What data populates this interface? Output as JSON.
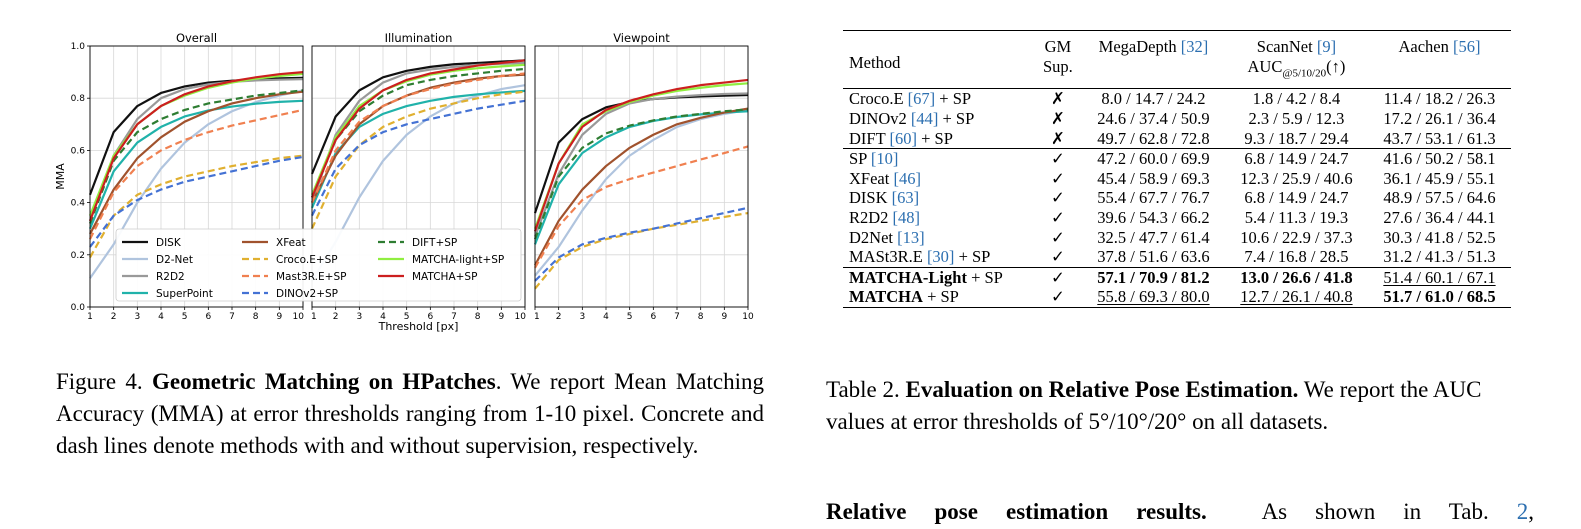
{
  "figure": {
    "panels": [
      "Overall",
      "Illumination",
      "Viewpoint"
    ],
    "y_axis_label": "MMA",
    "x_axis_label": "Threshold [px]",
    "y_ticks": [
      "0.0",
      "0.2",
      "0.4",
      "0.6",
      "0.8",
      "1.0"
    ],
    "x_ticks": [
      "1",
      "2",
      "3",
      "4",
      "5",
      "6",
      "7",
      "8",
      "9",
      "10"
    ]
  },
  "chart_data": [
    {
      "type": "line",
      "title": "Overall",
      "xlabel": "",
      "ylabel": "MMA",
      "x": [
        1,
        2,
        3,
        4,
        5,
        6,
        7,
        8,
        9,
        10
      ],
      "ylim": [
        0.0,
        1.0
      ],
      "xlim": [
        1,
        10
      ],
      "grid": true,
      "legend_position": "lower-center",
      "series": [
        {
          "name": "DISK",
          "color": "#111111",
          "dash": "solid",
          "values": [
            0.43,
            0.67,
            0.77,
            0.82,
            0.845,
            0.86,
            0.867,
            0.872,
            0.876,
            0.878
          ]
        },
        {
          "name": "D2-Net",
          "color": "#b0c4de",
          "dash": "solid",
          "values": [
            0.11,
            0.24,
            0.4,
            0.53,
            0.63,
            0.7,
            0.75,
            0.785,
            0.81,
            0.83
          ]
        },
        {
          "name": "R2D2",
          "color": "#999999",
          "dash": "solid",
          "values": [
            0.33,
            0.58,
            0.72,
            0.8,
            0.835,
            0.853,
            0.863,
            0.868,
            0.871,
            0.873
          ]
        },
        {
          "name": "SuperPoint",
          "color": "#20b2aa",
          "dash": "solid",
          "values": [
            0.3,
            0.52,
            0.63,
            0.69,
            0.73,
            0.753,
            0.768,
            0.779,
            0.786,
            0.79
          ]
        },
        {
          "name": "XFeat",
          "color": "#a0522d",
          "dash": "solid",
          "values": [
            0.28,
            0.45,
            0.57,
            0.65,
            0.71,
            0.75,
            0.78,
            0.8,
            0.815,
            0.825
          ]
        },
        {
          "name": "Croco.E+SP",
          "color": "#e0b030",
          "dash": "dashed",
          "values": [
            0.19,
            0.35,
            0.43,
            0.47,
            0.5,
            0.52,
            0.54,
            0.555,
            0.57,
            0.58
          ]
        },
        {
          "name": "Mast3R.E+SP",
          "color": "#f08050",
          "dash": "dashed",
          "values": [
            0.26,
            0.44,
            0.54,
            0.6,
            0.64,
            0.67,
            0.695,
            0.715,
            0.735,
            0.755
          ]
        },
        {
          "name": "DINOv2+SP",
          "color": "#4472d4",
          "dash": "dashed",
          "values": [
            0.23,
            0.35,
            0.41,
            0.45,
            0.48,
            0.5,
            0.52,
            0.54,
            0.56,
            0.575
          ]
        },
        {
          "name": "DIFT+SP",
          "color": "#2e7d32",
          "dash": "dashed",
          "values": [
            0.32,
            0.56,
            0.67,
            0.72,
            0.755,
            0.78,
            0.795,
            0.81,
            0.82,
            0.83
          ]
        },
        {
          "name": "MATCHA-light+SP",
          "color": "#90ee40",
          "dash": "solid",
          "values": [
            0.35,
            0.58,
            0.7,
            0.77,
            0.81,
            0.84,
            0.86,
            0.875,
            0.885,
            0.893
          ]
        },
        {
          "name": "MATCHA+SP",
          "color": "#cc1f1f",
          "dash": "solid",
          "values": [
            0.33,
            0.57,
            0.7,
            0.77,
            0.815,
            0.845,
            0.865,
            0.88,
            0.892,
            0.9
          ]
        }
      ]
    },
    {
      "type": "line",
      "title": "Illumination",
      "xlabel": "Threshold [px]",
      "ylabel": "",
      "x": [
        1,
        2,
        3,
        4,
        5,
        6,
        7,
        8,
        9,
        10
      ],
      "ylim": [
        0.0,
        1.0
      ],
      "xlim": [
        1,
        10
      ],
      "grid": true,
      "series": [
        {
          "name": "DISK",
          "color": "#111111",
          "dash": "solid",
          "values": [
            0.51,
            0.73,
            0.83,
            0.88,
            0.905,
            0.92,
            0.93,
            0.935,
            0.94,
            0.945
          ]
        },
        {
          "name": "D2-Net",
          "color": "#b0c4de",
          "dash": "solid",
          "values": [
            0.1,
            0.25,
            0.42,
            0.56,
            0.66,
            0.73,
            0.78,
            0.81,
            0.835,
            0.85
          ]
        },
        {
          "name": "R2D2",
          "color": "#999999",
          "dash": "solid",
          "values": [
            0.4,
            0.66,
            0.79,
            0.86,
            0.895,
            0.91,
            0.92,
            0.928,
            0.932,
            0.935
          ]
        },
        {
          "name": "SuperPoint",
          "color": "#20b2aa",
          "dash": "solid",
          "values": [
            0.38,
            0.59,
            0.69,
            0.74,
            0.77,
            0.79,
            0.805,
            0.815,
            0.822,
            0.828
          ]
        },
        {
          "name": "XFeat",
          "color": "#a0522d",
          "dash": "solid",
          "values": [
            0.4,
            0.58,
            0.7,
            0.77,
            0.81,
            0.84,
            0.86,
            0.875,
            0.885,
            0.89
          ]
        },
        {
          "name": "Croco.E+SP",
          "color": "#e0b030",
          "dash": "dashed",
          "values": [
            0.3,
            0.5,
            0.62,
            0.69,
            0.73,
            0.76,
            0.78,
            0.8,
            0.815,
            0.825
          ]
        },
        {
          "name": "Mast3R.E+SP",
          "color": "#f08050",
          "dash": "dashed",
          "values": [
            0.4,
            0.6,
            0.71,
            0.77,
            0.81,
            0.835,
            0.855,
            0.87,
            0.885,
            0.895
          ]
        },
        {
          "name": "DINOv2+SP",
          "color": "#4472d4",
          "dash": "dashed",
          "values": [
            0.35,
            0.53,
            0.62,
            0.67,
            0.7,
            0.72,
            0.74,
            0.76,
            0.775,
            0.79
          ]
        },
        {
          "name": "DIFT+SP",
          "color": "#2e7d32",
          "dash": "dashed",
          "values": [
            0.42,
            0.64,
            0.75,
            0.81,
            0.85,
            0.87,
            0.885,
            0.895,
            0.905,
            0.912
          ]
        },
        {
          "name": "MATCHA-light+SP",
          "color": "#90ee40",
          "dash": "solid",
          "values": [
            0.43,
            0.65,
            0.77,
            0.83,
            0.865,
            0.89,
            0.905,
            0.915,
            0.922,
            0.928
          ]
        },
        {
          "name": "MATCHA+SP",
          "color": "#cc1f1f",
          "dash": "solid",
          "values": [
            0.42,
            0.64,
            0.76,
            0.83,
            0.87,
            0.895,
            0.91,
            0.925,
            0.935,
            0.945
          ]
        }
      ]
    },
    {
      "type": "line",
      "title": "Viewpoint",
      "xlabel": "",
      "ylabel": "",
      "x": [
        1,
        2,
        3,
        4,
        5,
        6,
        7,
        8,
        9,
        10
      ],
      "ylim": [
        0.0,
        1.0
      ],
      "xlim": [
        1,
        10
      ],
      "grid": true,
      "series": [
        {
          "name": "DISK",
          "color": "#111111",
          "dash": "solid",
          "values": [
            0.36,
            0.63,
            0.72,
            0.765,
            0.785,
            0.797,
            0.803,
            0.807,
            0.81,
            0.812
          ]
        },
        {
          "name": "D2-Net",
          "color": "#b0c4de",
          "dash": "solid",
          "values": [
            0.12,
            0.23,
            0.37,
            0.49,
            0.58,
            0.64,
            0.69,
            0.72,
            0.74,
            0.755
          ]
        },
        {
          "name": "R2D2",
          "color": "#999999",
          "dash": "solid",
          "values": [
            0.27,
            0.51,
            0.66,
            0.74,
            0.78,
            0.797,
            0.806,
            0.812,
            0.816,
            0.818
          ]
        },
        {
          "name": "SuperPoint",
          "color": "#20b2aa",
          "dash": "solid",
          "values": [
            0.24,
            0.47,
            0.59,
            0.65,
            0.69,
            0.713,
            0.728,
            0.738,
            0.745,
            0.75
          ]
        },
        {
          "name": "XFeat",
          "color": "#a0522d",
          "dash": "solid",
          "values": [
            0.16,
            0.33,
            0.45,
            0.54,
            0.61,
            0.66,
            0.7,
            0.725,
            0.745,
            0.76
          ]
        },
        {
          "name": "Croco.E+SP",
          "color": "#e0b030",
          "dash": "dashed",
          "values": [
            0.07,
            0.18,
            0.23,
            0.26,
            0.28,
            0.3,
            0.315,
            0.33,
            0.345,
            0.36
          ]
        },
        {
          "name": "Mast3R.E+SP",
          "color": "#f08050",
          "dash": "dashed",
          "values": [
            0.15,
            0.31,
            0.41,
            0.46,
            0.49,
            0.515,
            0.54,
            0.565,
            0.59,
            0.615
          ]
        },
        {
          "name": "DINOv2+SP",
          "color": "#4472d4",
          "dash": "dashed",
          "values": [
            0.1,
            0.19,
            0.24,
            0.265,
            0.285,
            0.3,
            0.32,
            0.34,
            0.36,
            0.38
          ]
        },
        {
          "name": "DIFT+SP",
          "color": "#2e7d32",
          "dash": "dashed",
          "values": [
            0.26,
            0.5,
            0.61,
            0.665,
            0.695,
            0.715,
            0.73,
            0.74,
            0.75,
            0.757
          ]
        },
        {
          "name": "MATCHA-light+SP",
          "color": "#90ee40",
          "dash": "solid",
          "values": [
            0.3,
            0.55,
            0.7,
            0.75,
            0.785,
            0.81,
            0.828,
            0.84,
            0.85,
            0.857
          ]
        },
        {
          "name": "MATCHA+SP",
          "color": "#cc1f1f",
          "dash": "solid",
          "values": [
            0.29,
            0.55,
            0.69,
            0.755,
            0.79,
            0.815,
            0.835,
            0.85,
            0.86,
            0.87
          ]
        }
      ]
    }
  ],
  "figure_caption": {
    "label": "Figure 4.",
    "title": "Geometric Matching on HPatches",
    "body": ".  We report Mean Matching Accuracy (MMA) at error thresholds ranging from 1-10 pixel.  Concrete and dash lines denote methods with and without supervision, respectively."
  },
  "table": {
    "headers": {
      "method": "Method",
      "gm_line1": "GM",
      "gm_line2": "Sup.",
      "megadepth": "MegaDepth",
      "megadepth_ref": "[32]",
      "scannet": "ScanNet",
      "scannet_ref": "[9]",
      "auc": "AUC",
      "auc_sub": "@5/10/20",
      "auc_arrow": "(↑)",
      "aachen": "Aachen",
      "aachen_ref": "[56]"
    },
    "groups": [
      [
        {
          "method": "Croco.E",
          "ref": "[67]",
          "suffix": " + SP",
          "gm": "✗",
          "megadepth": "8.0 / 14.7 / 24.2",
          "scannet": "1.8 / 4.2 / 8.4",
          "aachen": "11.4 / 18.2 / 26.3"
        },
        {
          "method": "DINOv2",
          "ref": "[44]",
          "suffix": " + SP",
          "gm": "✗",
          "megadepth": "24.6 / 37.4 / 50.9",
          "scannet": "2.3 / 5.9 / 12.3",
          "aachen": "17.2 / 26.1 / 36.4"
        },
        {
          "method": "DIFT",
          "ref": "[60]",
          "suffix": " + SP",
          "gm": "✗",
          "megadepth": "49.7 / 62.8 / 72.8",
          "scannet": "9.3 / 18.7 / 29.4",
          "aachen": "43.7 / 53.1 / 61.3"
        }
      ],
      [
        {
          "method": "SP",
          "ref": "[10]",
          "suffix": "",
          "gm": "✓",
          "megadepth": "47.2 / 60.0 / 69.9",
          "scannet": "6.8 / 14.9 / 24.7",
          "aachen": "41.6 / 50.2 / 58.1"
        },
        {
          "method": "XFeat",
          "ref": "[46]",
          "suffix": "",
          "gm": "✓",
          "megadepth": "45.4 / 58.9 / 69.3",
          "scannet": "12.3 / 25.9 / 40.6",
          "aachen": "36.1 / 45.9 / 55.1"
        },
        {
          "method": "DISK",
          "ref": "[63]",
          "suffix": "",
          "gm": "✓",
          "megadepth": "55.4 / 67.7 / 76.7",
          "scannet": "6.8 / 14.9 / 24.7",
          "aachen": "48.9 / 57.5 / 64.6"
        },
        {
          "method": "R2D2",
          "ref": "[48]",
          "suffix": "",
          "gm": "✓",
          "megadepth": "39.6 / 54.3 / 66.2",
          "scannet": "5.4 / 11.3 / 19.3",
          "aachen": "27.6 / 36.4 / 44.1"
        },
        {
          "method": "D2Net",
          "ref": "[13]",
          "suffix": "",
          "gm": "✓",
          "megadepth": "32.5 / 47.7 / 61.4",
          "scannet": "10.6 / 22.9 / 37.3",
          "aachen": "30.3 / 41.8 / 52.5"
        },
        {
          "method": "MASt3R.E",
          "ref": "[30]",
          "suffix": " + SP",
          "gm": "✓",
          "megadepth": "37.8 / 51.6 / 63.6",
          "scannet": "7.4 / 16.8 / 28.5",
          "aachen": "31.2 / 41.3 / 51.3"
        }
      ],
      [
        {
          "method": "MATCHA-Light",
          "ref": "",
          "suffix": " + SP",
          "gm": "✓",
          "megadepth": "57.1 / 70.9 / 81.2",
          "scannet": "13.0 / 26.6 / 41.8",
          "aachen": "51.4 / 60.1 / 67.1",
          "bold_method": true,
          "md_style": "bold",
          "sn_style": "bold",
          "aa_style": "underline"
        },
        {
          "method": "MATCHA",
          "ref": "",
          "suffix": " + SP",
          "gm": "✓",
          "megadepth": "55.8 / 69.3 / 80.0",
          "scannet": "12.7 / 26.1 / 40.8",
          "aachen": "51.7 / 61.0 / 68.5",
          "bold_method": true,
          "md_style": "underline",
          "sn_style": "underline",
          "aa_style": "bold"
        }
      ]
    ]
  },
  "table_caption": {
    "label": "Table 2.",
    "title": "Evaluation on Relative Pose Estimation.",
    "body": " We report the AUC values at error thresholds of 5°/10°/20° on all datasets."
  },
  "paragraph": {
    "heading": "Relative pose estimation results.",
    "text_before_ref": "  As shown in Tab. ",
    "ref": "2",
    "text_after_ref": ","
  }
}
